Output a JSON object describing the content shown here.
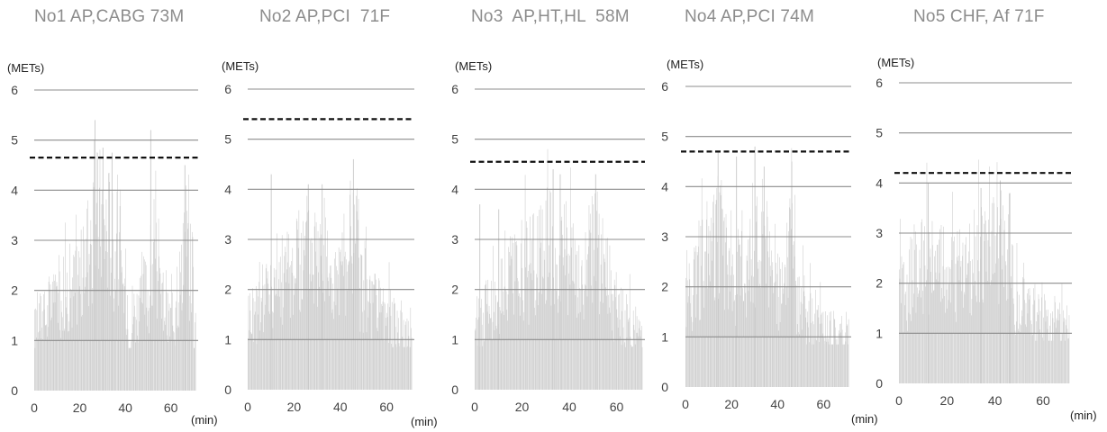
{
  "chart_data": [
    {
      "type": "bar",
      "title": "No1 AP,CABG 73M",
      "ylabel": "(METs)",
      "xlabel": "(min)",
      "ylim": [
        0,
        6
      ],
      "xlim": [
        0,
        72
      ],
      "yticks": [
        "0",
        "1",
        "2",
        "3",
        "4",
        "5",
        "6"
      ],
      "xticks": [
        "0",
        "20",
        "40",
        "60"
      ],
      "threshold": 4.65,
      "segments": [
        [
          0,
          1,
          1.2
        ],
        [
          1,
          6,
          1.45
        ],
        [
          6,
          9,
          1.7
        ],
        [
          9,
          13,
          1.9
        ],
        [
          13,
          18,
          2.05
        ],
        [
          18,
          22,
          2.3
        ],
        [
          22,
          26,
          2.9
        ],
        [
          26,
          30,
          3.5
        ],
        [
          30,
          34,
          3.25
        ],
        [
          34,
          38,
          2.85
        ],
        [
          38,
          41,
          2.0
        ],
        [
          41,
          43,
          1.25
        ],
        [
          43,
          47,
          1.6
        ],
        [
          47,
          51,
          1.95
        ],
        [
          51,
          55,
          2.35
        ],
        [
          55,
          58,
          1.8
        ],
        [
          58,
          62,
          1.4
        ],
        [
          62,
          65,
          2.2
        ],
        [
          65,
          68,
          3.1
        ],
        [
          68,
          70,
          2.5
        ]
      ],
      "peaks": [
        [
          26.5,
          5.4
        ],
        [
          30,
          4.85
        ],
        [
          34,
          4.75
        ],
        [
          51,
          5.2
        ],
        [
          66,
          4.5
        ]
      ]
    },
    {
      "type": "bar",
      "title": "No2 AP,PCI  71F",
      "ylabel": "(METs)",
      "xlabel": "(min)",
      "ylim": [
        0,
        6
      ],
      "xlim": [
        0,
        72
      ],
      "yticks": [
        "0",
        "1",
        "2",
        "3",
        "4",
        "5",
        "6"
      ],
      "xticks": [
        "0",
        "20",
        "40",
        "60"
      ],
      "threshold": 5.4,
      "segments": [
        [
          0,
          5,
          1.55
        ],
        [
          5,
          10,
          1.95
        ],
        [
          10,
          15,
          2.2
        ],
        [
          15,
          20,
          2.35
        ],
        [
          20,
          25,
          2.55
        ],
        [
          25,
          30,
          2.85
        ],
        [
          30,
          35,
          2.65
        ],
        [
          35,
          40,
          2.1
        ],
        [
          40,
          44,
          2.05
        ],
        [
          44,
          48,
          3.15
        ],
        [
          48,
          52,
          2.0
        ],
        [
          52,
          57,
          1.6
        ],
        [
          57,
          62,
          1.45
        ],
        [
          62,
          67,
          1.3
        ],
        [
          67,
          71,
          1.15
        ]
      ],
      "peaks": [
        [
          10,
          4.3
        ],
        [
          26,
          4.1
        ],
        [
          32,
          4.1
        ],
        [
          45.5,
          4.6
        ]
      ]
    },
    {
      "type": "bar",
      "title": "No3  AP,HT,HL  58M",
      "ylabel": "(METs)",
      "xlabel": "(min)",
      "ylim": [
        0,
        6
      ],
      "xlim": [
        0,
        72
      ],
      "yticks": [
        "0",
        "1",
        "2",
        "3",
        "4",
        "5",
        "6"
      ],
      "xticks": [
        "0",
        "20",
        "40",
        "60"
      ],
      "threshold": 4.55,
      "segments": [
        [
          0,
          4,
          1.35
        ],
        [
          4,
          9,
          1.7
        ],
        [
          9,
          14,
          1.95
        ],
        [
          14,
          19,
          2.15
        ],
        [
          19,
          24,
          2.35
        ],
        [
          24,
          29,
          2.55
        ],
        [
          29,
          34,
          2.85
        ],
        [
          34,
          39,
          2.65
        ],
        [
          39,
          44,
          2.35
        ],
        [
          44,
          48,
          2.0
        ],
        [
          48,
          52,
          2.75
        ],
        [
          52,
          56,
          2.45
        ],
        [
          56,
          61,
          1.75
        ],
        [
          61,
          66,
          1.45
        ],
        [
          66,
          71,
          1.25
        ]
      ],
      "peaks": [
        [
          2,
          3.7
        ],
        [
          10,
          3.6
        ],
        [
          33,
          4.4
        ],
        [
          36,
          4.3
        ],
        [
          51,
          4.3
        ]
      ]
    },
    {
      "type": "bar",
      "title": "No4 AP,PCI 74M",
      "ylabel": "(METs)",
      "xlabel": "(min)",
      "ylim": [
        0,
        6
      ],
      "xlim": [
        0,
        72
      ],
      "yticks": [
        "0",
        "1",
        "2",
        "3",
        "4",
        "5",
        "6"
      ],
      "xticks": [
        "0",
        "20",
        "40",
        "60"
      ],
      "threshold": 4.7,
      "segments": [
        [
          0,
          4,
          2.0
        ],
        [
          4,
          8,
          2.4
        ],
        [
          8,
          12,
          2.7
        ],
        [
          12,
          16,
          3.0
        ],
        [
          16,
          20,
          2.5
        ],
        [
          20,
          24,
          2.2
        ],
        [
          24,
          28,
          2.5
        ],
        [
          28,
          32,
          2.85
        ],
        [
          32,
          36,
          2.6
        ],
        [
          36,
          40,
          2.25
        ],
        [
          40,
          44,
          1.8
        ],
        [
          44,
          48,
          2.7
        ],
        [
          48,
          52,
          1.6
        ],
        [
          52,
          57,
          1.35
        ],
        [
          57,
          63,
          1.15
        ],
        [
          63,
          71,
          1.05
        ]
      ],
      "peaks": [
        [
          14,
          4.7
        ],
        [
          22,
          4.6
        ],
        [
          30,
          4.8
        ],
        [
          34,
          4.4
        ],
        [
          46,
          4.5
        ]
      ]
    },
    {
      "type": "bar",
      "title": "No5 CHF, Af 71F",
      "ylabel": "(METs)",
      "xlabel": "(min)",
      "ylim": [
        0,
        6
      ],
      "xlim": [
        0,
        72
      ],
      "yticks": [
        "0",
        "1",
        "2",
        "3",
        "4",
        "5",
        "6"
      ],
      "xticks": [
        "0",
        "20",
        "40",
        "60"
      ],
      "threshold": 4.2,
      "segments": [
        [
          0,
          4,
          1.75
        ],
        [
          4,
          9,
          2.15
        ],
        [
          9,
          14,
          2.35
        ],
        [
          14,
          19,
          2.2
        ],
        [
          19,
          24,
          2.1
        ],
        [
          24,
          29,
          2.3
        ],
        [
          29,
          34,
          2.45
        ],
        [
          34,
          39,
          2.5
        ],
        [
          39,
          44,
          2.6
        ],
        [
          44,
          48,
          2.45
        ],
        [
          48,
          52,
          1.75
        ],
        [
          52,
          57,
          1.45
        ],
        [
          57,
          62,
          1.3
        ],
        [
          62,
          67,
          1.25
        ],
        [
          67,
          71,
          1.15
        ]
      ],
      "peaks": [
        [
          12,
          4.0
        ],
        [
          34,
          3.9
        ],
        [
          42,
          4.05
        ],
        [
          46,
          3.8
        ]
      ]
    }
  ]
}
